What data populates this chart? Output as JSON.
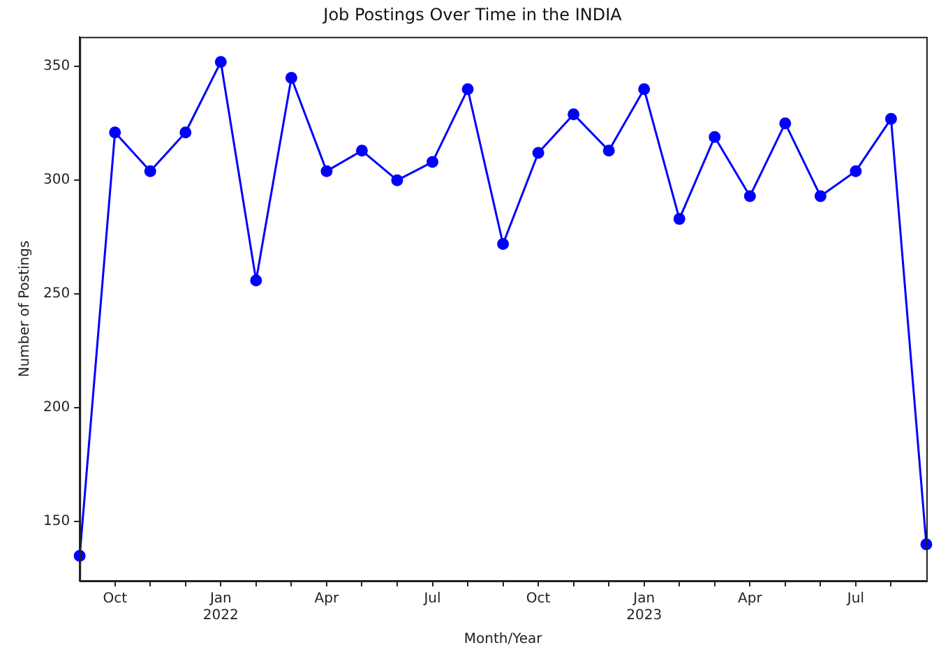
{
  "chart_data": {
    "type": "line",
    "title": "Job Postings Over Time in the INDIA",
    "xlabel": "Month/Year",
    "ylabel": "Number of Postings",
    "x": [
      "2021-09",
      "2021-10",
      "2021-11",
      "2021-12",
      "2022-01",
      "2022-02",
      "2022-03",
      "2022-04",
      "2022-05",
      "2022-06",
      "2022-07",
      "2022-08",
      "2022-09",
      "2022-10",
      "2022-11",
      "2022-12",
      "2023-01",
      "2023-02",
      "2023-03",
      "2023-04",
      "2023-05",
      "2023-06",
      "2023-07",
      "2023-08",
      "2023-09"
    ],
    "series": [
      {
        "color": "#0000ff",
        "values": [
          135,
          321,
          304,
          321,
          352,
          256,
          345,
          304,
          313,
          300,
          308,
          340,
          272,
          312,
          329,
          313,
          340,
          283,
          319,
          293,
          325,
          293,
          304,
          327,
          140
        ]
      }
    ],
    "xlim": [
      "2021-09",
      "2023-09"
    ],
    "xticks": [
      {
        "value": "2021-10",
        "label": "Oct"
      },
      {
        "value": "2021-11",
        "label": null
      },
      {
        "value": "2021-12",
        "label": null
      },
      {
        "value": "2022-01",
        "label": "Jan\n2022"
      },
      {
        "value": "2022-02",
        "label": null
      },
      {
        "value": "2022-03",
        "label": null
      },
      {
        "value": "2022-04",
        "label": "Apr"
      },
      {
        "value": "2022-05",
        "label": null
      },
      {
        "value": "2022-06",
        "label": null
      },
      {
        "value": "2022-07",
        "label": "Jul"
      },
      {
        "value": "2022-08",
        "label": null
      },
      {
        "value": "2022-09",
        "label": null
      },
      {
        "value": "2022-10",
        "label": "Oct"
      },
      {
        "value": "2022-11",
        "label": null
      },
      {
        "value": "2022-12",
        "label": null
      },
      {
        "value": "2023-01",
        "label": "Jan\n2023"
      },
      {
        "value": "2023-02",
        "label": null
      },
      {
        "value": "2023-03",
        "label": null
      },
      {
        "value": "2023-04",
        "label": "Apr"
      },
      {
        "value": "2023-05",
        "label": null
      },
      {
        "value": "2023-06",
        "label": null
      },
      {
        "value": "2023-07",
        "label": "Jul"
      },
      {
        "value": "2023-08",
        "label": null
      }
    ],
    "ylim": [
      124,
      363
    ],
    "yticks": [
      150,
      200,
      250,
      300,
      350
    ],
    "grid": false,
    "legend": false,
    "marker": "circle",
    "line_style": "solid"
  }
}
